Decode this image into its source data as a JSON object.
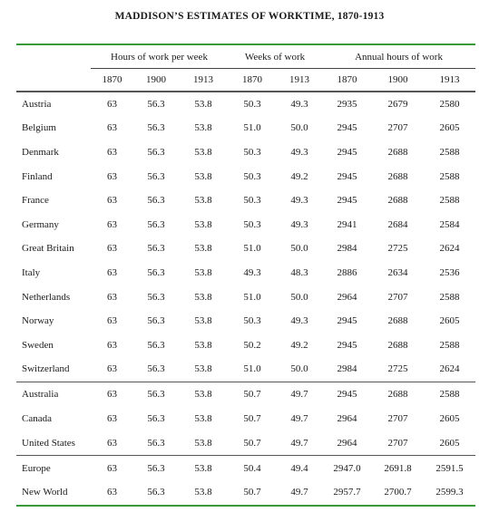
{
  "title": "MADDISON’S ESTIMATES OF WORKTIME, 1870-1913",
  "groups": [
    "Hours of work per week",
    "Weeks of work",
    "Annual hours of work"
  ],
  "years": {
    "hours": [
      "1870",
      "1900",
      "1913"
    ],
    "weeks": [
      "1870",
      "1913"
    ],
    "annual": [
      "1870",
      "1900",
      "1913"
    ]
  },
  "sections": [
    [
      {
        "name": "Austria",
        "v": [
          "63",
          "56.3",
          "53.8",
          "50.3",
          "49.3",
          "2935",
          "2679",
          "2580"
        ]
      },
      {
        "name": "Belgium",
        "v": [
          "63",
          "56.3",
          "53.8",
          "51.0",
          "50.0",
          "2945",
          "2707",
          "2605"
        ]
      },
      {
        "name": "Denmark",
        "v": [
          "63",
          "56.3",
          "53.8",
          "50.3",
          "49.3",
          "2945",
          "2688",
          "2588"
        ]
      },
      {
        "name": "Finland",
        "v": [
          "63",
          "56.3",
          "53.8",
          "50.3",
          "49.2",
          "2945",
          "2688",
          "2588"
        ]
      },
      {
        "name": "France",
        "v": [
          "63",
          "56.3",
          "53.8",
          "50.3",
          "49.3",
          "2945",
          "2688",
          "2588"
        ]
      },
      {
        "name": "Germany",
        "v": [
          "63",
          "56.3",
          "53.8",
          "50.3",
          "49.3",
          "2941",
          "2684",
          "2584"
        ]
      },
      {
        "name": "Great Britain",
        "v": [
          "63",
          "56.3",
          "53.8",
          "51.0",
          "50.0",
          "2984",
          "2725",
          "2624"
        ]
      },
      {
        "name": "Italy",
        "v": [
          "63",
          "56.3",
          "53.8",
          "49.3",
          "48.3",
          "2886",
          "2634",
          "2536"
        ]
      },
      {
        "name": "Netherlands",
        "v": [
          "63",
          "56.3",
          "53.8",
          "51.0",
          "50.0",
          "2964",
          "2707",
          "2588"
        ]
      },
      {
        "name": "Norway",
        "v": [
          "63",
          "56.3",
          "53.8",
          "50.3",
          "49.3",
          "2945",
          "2688",
          "2605"
        ]
      },
      {
        "name": "Sweden",
        "v": [
          "63",
          "56.3",
          "53.8",
          "50.2",
          "49.2",
          "2945",
          "2688",
          "2588"
        ]
      },
      {
        "name": "Switzerland",
        "v": [
          "63",
          "56.3",
          "53.8",
          "51.0",
          "50.0",
          "2984",
          "2725",
          "2624"
        ]
      }
    ],
    [
      {
        "name": "Australia",
        "v": [
          "63",
          "56.3",
          "53.8",
          "50.7",
          "49.7",
          "2945",
          "2688",
          "2588"
        ]
      },
      {
        "name": "Canada",
        "v": [
          "63",
          "56.3",
          "53.8",
          "50.7",
          "49.7",
          "2964",
          "2707",
          "2605"
        ]
      },
      {
        "name": "United States",
        "v": [
          "63",
          "56.3",
          "53.8",
          "50.7",
          "49.7",
          "2964",
          "2707",
          "2605"
        ]
      }
    ],
    [
      {
        "name": "Europe",
        "v": [
          "63",
          "56.3",
          "53.8",
          "50.4",
          "49.4",
          "2947.0",
          "2691.8",
          "2591.5"
        ]
      },
      {
        "name": "New World",
        "v": [
          "63",
          "56.3",
          "53.8",
          "50.7",
          "49.7",
          "2957.7",
          "2700.7",
          "2599.3"
        ]
      }
    ]
  ],
  "colors": {
    "rule": "#3a9a3a",
    "separator": "#555555"
  }
}
